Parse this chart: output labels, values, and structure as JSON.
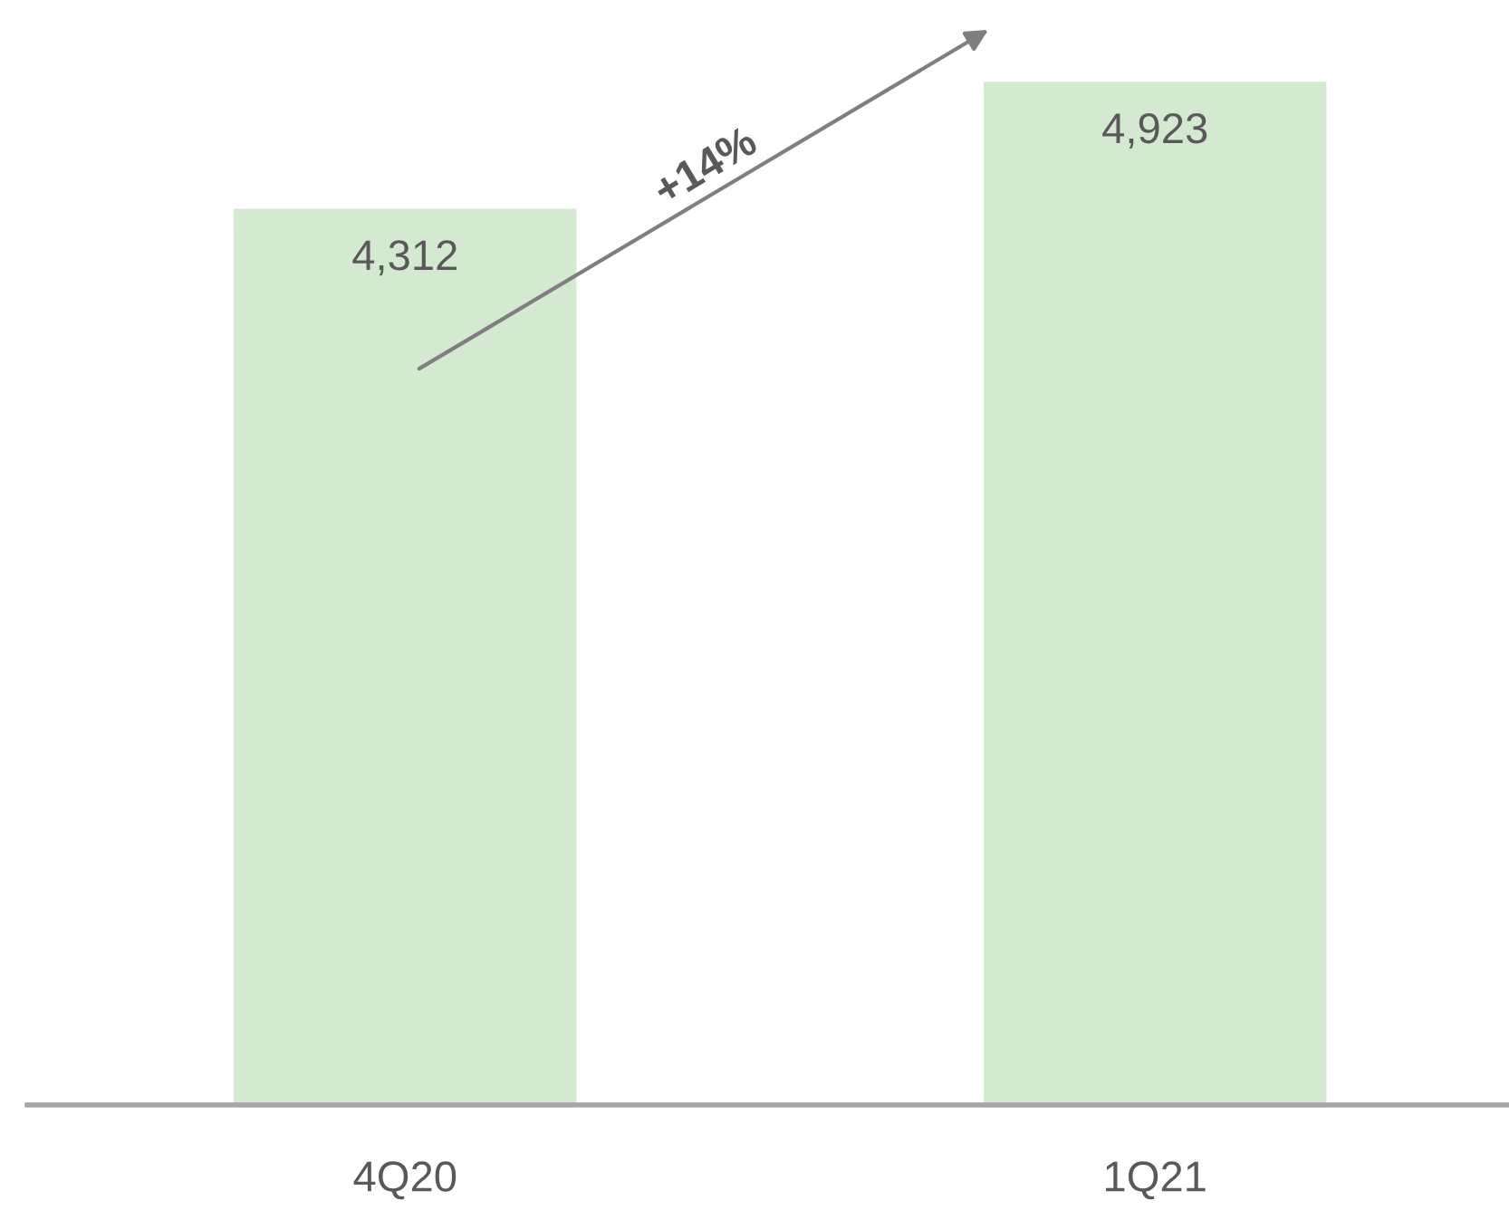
{
  "chart_data": {
    "type": "bar",
    "categories": [
      "4Q20",
      "1Q21"
    ],
    "values": [
      4312,
      4923
    ],
    "value_labels": [
      "4,312",
      "4,923"
    ],
    "color": "#d3ead0",
    "tick_labels": "x",
    "grid": false,
    "annotations": [
      "+14%"
    ]
  }
}
